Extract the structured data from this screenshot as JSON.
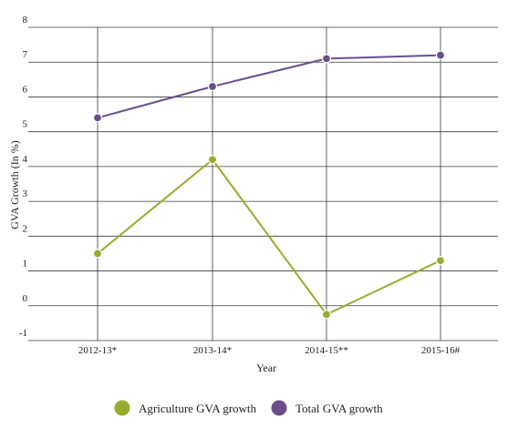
{
  "chart_data": {
    "type": "line",
    "categories": [
      "2012-13*",
      "2013-14*",
      "2014-15**",
      "2015-16#"
    ],
    "series": [
      {
        "name": "Agriculture GVA growth",
        "values": [
          1.5,
          4.2,
          -0.25,
          1.3
        ],
        "color": "#93ad2d"
      },
      {
        "name": "Total GVA growth",
        "values": [
          5.4,
          6.3,
          7.1,
          7.2
        ],
        "color": "#6a4f8b"
      }
    ],
    "title": "",
    "xlabel": "Year",
    "ylabel": "GVA Growth (In %)",
    "ylim": [
      -1,
      8
    ],
    "yticks": [
      -1,
      0,
      1,
      2,
      3,
      4,
      5,
      6,
      7,
      8
    ],
    "grid": true,
    "legend_position": "bottom-center"
  }
}
